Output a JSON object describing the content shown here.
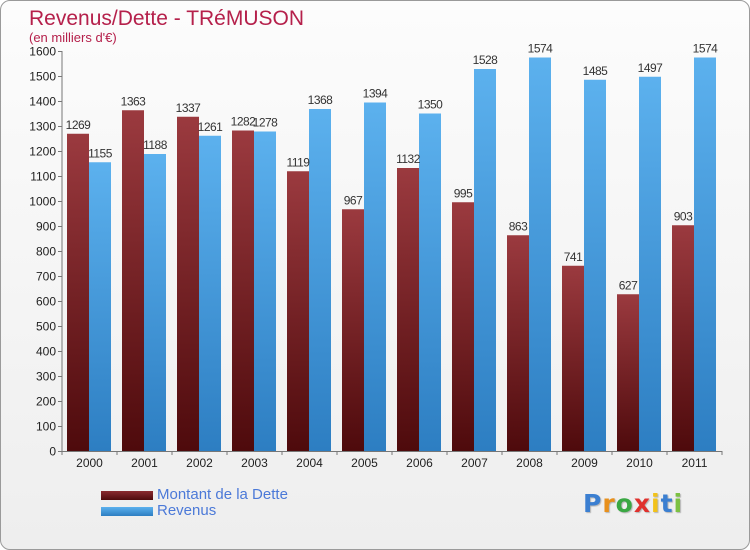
{
  "chart_data": {
    "type": "bar",
    "title": "Revenus/Dette - TRéMUSON",
    "subtitle": "(en milliers d'€)",
    "categories": [
      "2000",
      "2001",
      "2002",
      "2003",
      "2004",
      "2005",
      "2006",
      "2007",
      "2008",
      "2009",
      "2010",
      "2011"
    ],
    "series": [
      {
        "name": "Montant de la Dette",
        "color": "#7a1f24",
        "values": [
          1269,
          1363,
          1337,
          1282,
          1119,
          967,
          1132,
          995,
          863,
          741,
          627,
          903
        ]
      },
      {
        "name": "Revenus",
        "color": "#4a9fe0",
        "values": [
          1155,
          1188,
          1261,
          1278,
          1368,
          1394,
          1350,
          1528,
          1574,
          1485,
          1497,
          1574
        ]
      }
    ],
    "ylim": [
      0,
      1600
    ],
    "ytick_step": 100,
    "grid": false,
    "legend_position": "bottom-left"
  },
  "logo": {
    "letters": [
      "P",
      "r",
      "o",
      "x",
      "i",
      "t",
      "i"
    ],
    "colors": [
      "#3b7fd1",
      "#e8901c",
      "#3aa843",
      "#e0312d",
      "#f2c21a",
      "#3b7fd1",
      "#7cc142"
    ]
  }
}
